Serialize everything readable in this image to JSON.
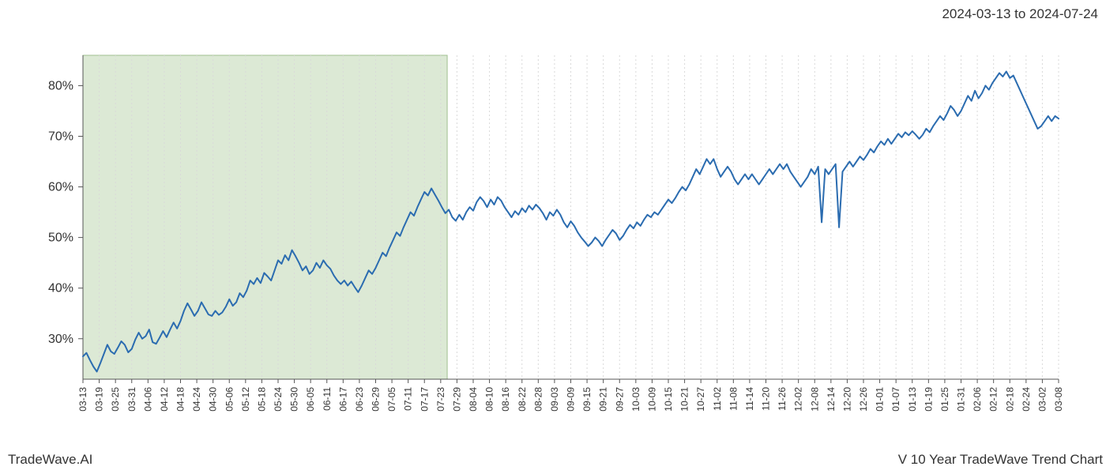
{
  "header": {
    "date_range": "2024-03-13 to 2024-07-24"
  },
  "footer": {
    "left": "TradeWave.AI",
    "right": "V 10 Year TradeWave Trend Chart"
  },
  "chart": {
    "type": "line",
    "background_color": "#ffffff",
    "line_color": "#2b6cb0",
    "line_width": 2,
    "highlight_fill": "#dce9d5",
    "highlight_stroke": "#9fbf8f",
    "grid_color": "#d9d9d9",
    "grid_dash": "2,3",
    "axis_color": "#555555",
    "tick_color": "#555555",
    "ylim": [
      22,
      86
    ],
    "yticks": [
      30,
      40,
      50,
      60,
      70,
      80
    ],
    "ytick_labels": [
      "30%",
      "40%",
      "50%",
      "60%",
      "70%",
      "80%"
    ],
    "ytick_fontsize": 16,
    "xtick_fontsize": 12,
    "xtick_rotation": -90,
    "xticks": [
      "03-13",
      "03-19",
      "03-25",
      "03-31",
      "04-06",
      "04-12",
      "04-18",
      "04-24",
      "04-30",
      "05-06",
      "05-12",
      "05-18",
      "05-24",
      "05-30",
      "06-05",
      "06-11",
      "06-17",
      "06-23",
      "06-29",
      "07-05",
      "07-11",
      "07-17",
      "07-23",
      "07-29",
      "08-04",
      "08-10",
      "08-16",
      "08-22",
      "08-28",
      "09-03",
      "09-09",
      "09-15",
      "09-21",
      "09-27",
      "10-03",
      "10-09",
      "10-15",
      "10-21",
      "10-27",
      "11-02",
      "11-08",
      "11-14",
      "11-20",
      "11-26",
      "12-02",
      "12-08",
      "12-14",
      "12-20",
      "12-26",
      "01-01",
      "01-07",
      "01-13",
      "01-19",
      "01-25",
      "01-31",
      "02-06",
      "02-12",
      "02-18",
      "02-24",
      "03-02",
      "03-08"
    ],
    "highlight_range": [
      0,
      22.4
    ],
    "values": [
      26.5,
      27.2,
      25.8,
      24.5,
      23.5,
      25.2,
      27.0,
      28.8,
      27.5,
      27.0,
      28.2,
      29.5,
      28.8,
      27.3,
      28.0,
      29.8,
      31.2,
      30.0,
      30.5,
      31.8,
      29.3,
      29.0,
      30.2,
      31.5,
      30.3,
      31.8,
      33.2,
      32.0,
      33.5,
      35.5,
      37.0,
      35.8,
      34.5,
      35.5,
      37.2,
      36.0,
      34.8,
      34.5,
      35.5,
      34.7,
      35.2,
      36.3,
      37.8,
      36.5,
      37.2,
      39.0,
      38.2,
      39.5,
      41.5,
      40.8,
      42.0,
      41.0,
      43.0,
      42.3,
      41.5,
      43.5,
      45.5,
      44.8,
      46.5,
      45.5,
      47.5,
      46.3,
      45.0,
      43.5,
      44.3,
      42.8,
      43.5,
      45.0,
      44.0,
      45.5,
      44.5,
      43.8,
      42.5,
      41.5,
      40.8,
      41.5,
      40.5,
      41.3,
      40.2,
      39.2,
      40.5,
      42.0,
      43.5,
      42.8,
      44.0,
      45.5,
      47.0,
      46.3,
      48.0,
      49.5,
      51.0,
      50.3,
      52.0,
      53.5,
      55.0,
      54.3,
      56.0,
      57.5,
      59.0,
      58.3,
      59.7,
      58.5,
      57.3,
      56.0,
      54.8,
      55.5,
      54.0,
      53.3,
      54.5,
      53.5,
      55.0,
      56.0,
      55.3,
      57.0,
      58.0,
      57.2,
      56.0,
      57.5,
      56.5,
      58.0,
      57.3,
      56.0,
      55.0,
      54.0,
      55.2,
      54.5,
      55.8,
      55.0,
      56.3,
      55.5,
      56.5,
      55.8,
      54.8,
      53.5,
      55.0,
      54.3,
      55.5,
      54.5,
      53.0,
      52.0,
      53.2,
      52.3,
      51.0,
      50.0,
      49.2,
      48.3,
      49.0,
      50.0,
      49.3,
      48.3,
      49.5,
      50.5,
      51.5,
      50.8,
      49.5,
      50.3,
      51.5,
      52.5,
      51.8,
      53.0,
      52.3,
      53.5,
      54.5,
      54.0,
      55.0,
      54.5,
      55.5,
      56.5,
      57.5,
      56.8,
      57.8,
      59.0,
      60.0,
      59.3,
      60.5,
      62.0,
      63.5,
      62.5,
      64.0,
      65.5,
      64.5,
      65.5,
      63.5,
      62.0,
      63.0,
      64.0,
      63.0,
      61.5,
      60.5,
      61.5,
      62.5,
      61.5,
      62.5,
      61.5,
      60.5,
      61.5,
      62.5,
      63.5,
      62.5,
      63.5,
      64.5,
      63.5,
      64.5,
      63.0,
      62.0,
      61.0,
      60.0,
      61.0,
      62.0,
      63.5,
      62.5,
      64.0,
      53.0,
      63.5,
      62.5,
      63.5,
      64.5,
      52.0,
      63.0,
      64.0,
      65.0,
      64.0,
      65.0,
      66.0,
      65.3,
      66.3,
      67.5,
      66.8,
      68.0,
      69.0,
      68.3,
      69.5,
      68.5,
      69.5,
      70.5,
      69.8,
      70.8,
      70.2,
      71.0,
      70.3,
      69.5,
      70.3,
      71.5,
      70.8,
      72.0,
      73.0,
      74.0,
      73.2,
      74.5,
      76.0,
      75.2,
      74.0,
      75.0,
      76.5,
      78.0,
      77.0,
      79.0,
      77.5,
      78.5,
      80.0,
      79.2,
      80.5,
      81.5,
      82.5,
      81.8,
      82.8,
      81.5,
      82.0,
      80.5,
      79.0,
      77.5,
      76.0,
      74.5,
      73.0,
      71.5,
      72.0,
      73.0,
      74.0,
      73.0,
      74.0,
      73.5
    ]
  }
}
